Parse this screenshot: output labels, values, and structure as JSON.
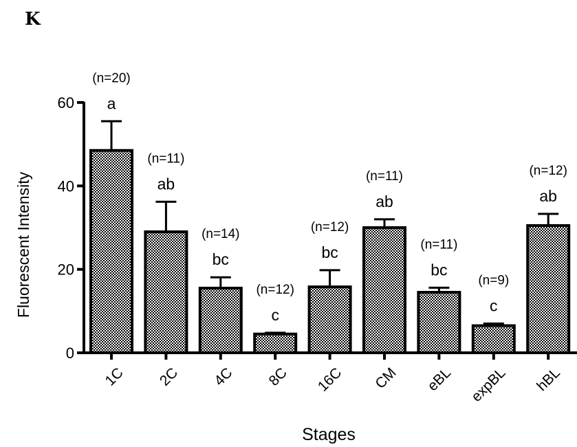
{
  "panel_label": "K",
  "chart_data": {
    "type": "bar",
    "title": "",
    "xlabel": "Stages",
    "ylabel": "Fluorescent Intensity",
    "ylim": [
      0,
      60
    ],
    "yticks": [
      0,
      20,
      40,
      60
    ],
    "categories": [
      "1C",
      "2C",
      "4C",
      "8C",
      "16C",
      "CM",
      "eBL",
      "expBL",
      "hBL"
    ],
    "values": [
      48.5,
      29,
      15.5,
      4.5,
      15.8,
      30,
      14.5,
      6.5,
      30.5
    ],
    "errors": [
      7,
      7.2,
      2.6,
      0.3,
      4,
      2,
      1.1,
      0.5,
      2.8
    ],
    "n_labels": [
      "(n=20)",
      "(n=11)",
      "(n=14)",
      "(n=12)",
      "(n=12)",
      "(n=11)",
      "(n=11)",
      "(n=9)",
      "(n=12)"
    ],
    "significance_labels": [
      "a",
      "ab",
      "bc",
      "c",
      "bc",
      "ab",
      "bc",
      "c",
      "ab"
    ],
    "bar_fill": "checkered",
    "bar_color": "#000000",
    "grid": false,
    "legend": "none"
  }
}
